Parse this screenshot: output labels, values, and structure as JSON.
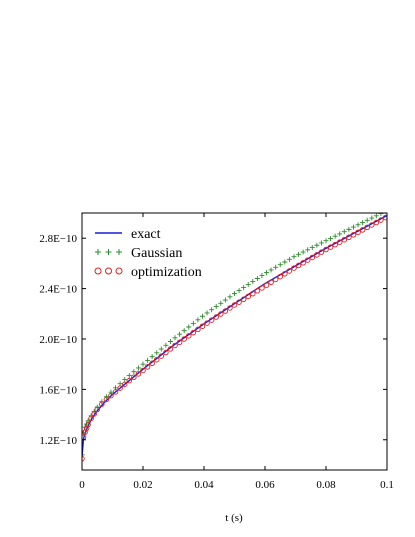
{
  "chart_data": {
    "type": "line",
    "title": "",
    "xlabel": "t (s)",
    "ylabel": "",
    "xlim": [
      0,
      0.1
    ],
    "ylim": [
      9.6e-11,
      3e-10
    ],
    "grid": false,
    "legend_position": "top-left",
    "x_ticks": [
      0,
      0.02,
      0.04,
      0.06,
      0.08,
      0.1
    ],
    "x_tick_labels": [
      "0",
      "0.02",
      "0.04",
      "0.06",
      "0.08",
      "0.1"
    ],
    "y_ticks": [
      1.2e-10,
      1.6e-10,
      2e-10,
      2.4e-10,
      2.8e-10
    ],
    "y_tick_labels": [
      "1.2E−10",
      "1.6E−10",
      "2.0E−10",
      "2.4E−10",
      "2.8E−10"
    ],
    "series": [
      {
        "name": "exact",
        "style": "line",
        "color": "#1a1adb",
        "x": [
          0,
          0.0005,
          0.001,
          0.002,
          0.003,
          0.005,
          0.0075,
          0.01,
          0.015,
          0.02,
          0.03,
          0.04,
          0.05,
          0.06,
          0.07,
          0.08,
          0.09,
          0.1
        ],
        "y": [
          1.06e-10,
          1.21e-10,
          1.25e-10,
          1.31e-10,
          1.36e-10,
          1.43e-10,
          1.5e-10,
          1.56e-10,
          1.66e-10,
          1.76e-10,
          1.95e-10,
          2.12e-10,
          2.28e-10,
          2.44e-10,
          2.58e-10,
          2.72e-10,
          2.85e-10,
          2.98e-10
        ]
      },
      {
        "name": "Gaussian",
        "style": "markers-plus",
        "color": "#2e8b2e",
        "x": [
          0,
          0.0005,
          0.001,
          0.002,
          0.003,
          0.005,
          0.0075,
          0.01,
          0.015,
          0.02,
          0.03,
          0.04,
          0.05,
          0.06,
          0.07,
          0.08,
          0.09,
          0.1
        ],
        "y": [
          1.08e-10,
          1.26e-10,
          1.3e-10,
          1.35e-10,
          1.39e-10,
          1.46e-10,
          1.53e-10,
          1.59e-10,
          1.7e-10,
          1.8e-10,
          2e-10,
          2.19e-10,
          2.36e-10,
          2.52e-10,
          2.66e-10,
          2.78e-10,
          2.9e-10,
          3.02e-10
        ]
      },
      {
        "name": "optimization",
        "style": "markers-circle",
        "color": "#e02020",
        "x": [
          0,
          0.0005,
          0.001,
          0.002,
          0.003,
          0.005,
          0.0075,
          0.01,
          0.015,
          0.02,
          0.03,
          0.04,
          0.05,
          0.06,
          0.07,
          0.08,
          0.09,
          0.1
        ],
        "y": [
          1.05e-10,
          1.22e-10,
          1.26e-10,
          1.32e-10,
          1.37e-10,
          1.44e-10,
          1.51e-10,
          1.56e-10,
          1.66e-10,
          1.75e-10,
          1.94e-10,
          2.11e-10,
          2.27e-10,
          2.42e-10,
          2.57e-10,
          2.71e-10,
          2.84e-10,
          2.97e-10
        ]
      }
    ]
  }
}
